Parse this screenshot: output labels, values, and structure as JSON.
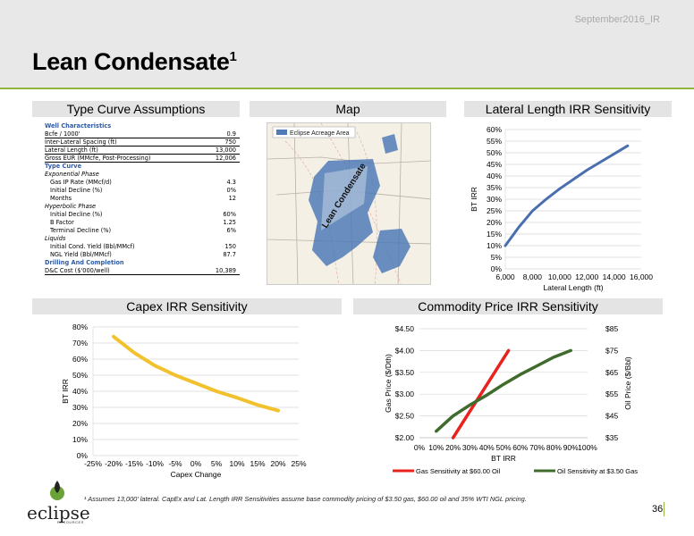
{
  "header": {
    "date": "September2016_IR",
    "title": "Lean Condensate",
    "title_sup": "1"
  },
  "sections": {
    "type_curve": "Type Curve Assumptions",
    "map": "Map",
    "lateral": "Lateral Length IRR Sensitivity",
    "capex": "Capex IRR Sensitivity",
    "commodity": "Commodity Price IRR Sensitivity"
  },
  "well_table": [
    {
      "label": "Well Characteristics",
      "value": "",
      "style": "head"
    },
    {
      "label": "Bcfe / 1000'",
      "value": "0.9",
      "style": "ul"
    },
    {
      "label": "Inter-Lateral Spacing (ft)",
      "value": "750",
      "style": "ul"
    },
    {
      "label": "Lateral Length (ft)",
      "value": "13,000",
      "style": "ul"
    },
    {
      "label": "Gross EUR (MMcfe, Post-Processing)",
      "value": "12,006",
      "style": "ul"
    },
    {
      "label": "Type Curve",
      "value": "",
      "style": "head"
    },
    {
      "label": "Exponential Phase",
      "value": "",
      "style": "ital"
    },
    {
      "label": "Gas IP Rate (MMcf/d)",
      "value": "4.3",
      "style": "ind"
    },
    {
      "label": "Initial Decline (%)",
      "value": "0%",
      "style": "ind"
    },
    {
      "label": "Months",
      "value": "12",
      "style": "ind"
    },
    {
      "label": "Hyperbolic Phase",
      "value": "",
      "style": "ital"
    },
    {
      "label": "Initial Decline (%)",
      "value": "60%",
      "style": "ind"
    },
    {
      "label": "B Factor",
      "value": "1.25",
      "style": "ind"
    },
    {
      "label": "Terminal Decline (%)",
      "value": "6%",
      "style": "ind"
    },
    {
      "label": "Liquids",
      "value": "",
      "style": "ital"
    },
    {
      "label": "Initial Cond. Yield (Bbl/MMcf)",
      "value": "150",
      "style": "ind"
    },
    {
      "label": "NGL Yield (Bbl/MMcf)",
      "value": "87.7",
      "style": "ind"
    },
    {
      "label": "Drilling And Completion",
      "value": "",
      "style": "head"
    },
    {
      "label": "D&C Cost ($'000/well)",
      "value": "10,389",
      "style": "ul"
    }
  ],
  "map": {
    "legend": "Eclipse Acreage Area",
    "area_label": "Lean Condensate"
  },
  "chart_data": [
    {
      "type": "line",
      "title": "Lateral Length IRR Sensitivity",
      "xlabel": "Lateral Length (ft)",
      "ylabel": "BT IRR",
      "xlim": [
        6000,
        16000
      ],
      "ylim": [
        0,
        60
      ],
      "x_ticks": [
        "6,000",
        "8,000",
        "10,000",
        "12,000",
        "14,000",
        "16,000"
      ],
      "y_ticks": [
        "0%",
        "5%",
        "10%",
        "15%",
        "20%",
        "25%",
        "30%",
        "35%",
        "40%",
        "45%",
        "50%",
        "55%",
        "60%"
      ],
      "color": "#4a6fae",
      "x": [
        6000,
        7000,
        8000,
        9000,
        10000,
        11000,
        12000,
        13000,
        14000,
        15000
      ],
      "y": [
        10,
        18,
        25,
        30,
        34.5,
        38.5,
        42.5,
        46,
        49.5,
        53
      ]
    },
    {
      "type": "line",
      "title": "Capex IRR Sensitivity",
      "xlabel": "Capex Change",
      "ylabel": "BT IRR",
      "xlim": [
        -25,
        25
      ],
      "ylim": [
        0,
        80
      ],
      "x_ticks": [
        "-25%",
        "-20%",
        "-15%",
        "-10%",
        "-5%",
        "0%",
        "5%",
        "10%",
        "15%",
        "20%",
        "25%"
      ],
      "y_ticks": [
        "0%",
        "10%",
        "20%",
        "30%",
        "40%",
        "50%",
        "60%",
        "70%",
        "80%"
      ],
      "color": "#f2c12e",
      "x": [
        -20,
        -15,
        -10,
        -5,
        0,
        5,
        10,
        15,
        20
      ],
      "y": [
        74,
        64,
        56,
        50,
        45,
        40,
        36,
        31.5,
        28
      ]
    },
    {
      "type": "line",
      "title": "Commodity Price IRR Sensitivity",
      "xlabel": "BT IRR",
      "ylabel": "Gas Price ($/Dth)",
      "y2label": "Oil Price ($/Bbl)",
      "xlim": [
        0,
        100
      ],
      "ylim": [
        2.0,
        4.5
      ],
      "y2lim": [
        35,
        85
      ],
      "x_ticks": [
        "0%",
        "10%",
        "20%",
        "30%",
        "40%",
        "50%",
        "60%",
        "70%",
        "80%",
        "90%",
        "100%"
      ],
      "y_ticks": [
        "$2.00",
        "$2.50",
        "$3.00",
        "$3.50",
        "$4.00",
        "$4.50"
      ],
      "y2_ticks": [
        "$35",
        "$45",
        "$55",
        "$65",
        "$75",
        "$85"
      ],
      "series": [
        {
          "name": "Gas Sensitivity at $60.00 Oil",
          "color": "#e8231e",
          "axis": "left",
          "x": [
            20,
            53
          ],
          "y": [
            2.0,
            4.0
          ]
        },
        {
          "name": "Oil Sensitivity at $3.50 Gas",
          "color": "#3f6b2c",
          "axis": "right",
          "x": [
            10,
            20,
            30,
            40,
            50,
            60,
            70,
            80,
            90
          ],
          "y": [
            38,
            45,
            50,
            54.5,
            59.5,
            64,
            68,
            72,
            75
          ]
        }
      ]
    }
  ],
  "footnote": "¹ Assumes 13,000' lateral. CapEx and Lat. Length IRR Sensitivities assume base commodity pricing of $3.50 gas, $60.00 oil and 35% WTI NGL pricing.",
  "page_number": "36",
  "logo": {
    "name": "eclipse",
    "sub": "RESOURCES"
  }
}
